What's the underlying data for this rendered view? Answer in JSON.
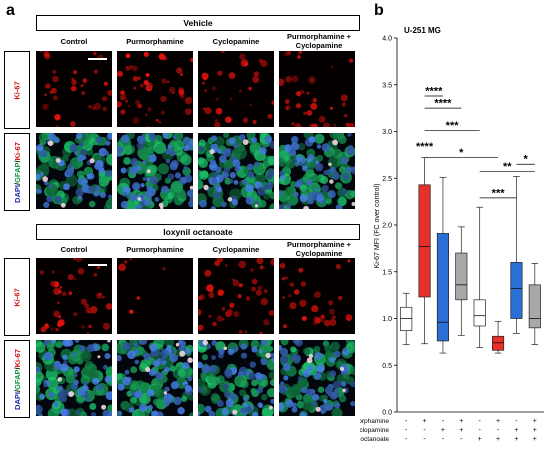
{
  "panel_a": {
    "letter": "a",
    "groups": [
      {
        "title": "Vehicle",
        "columns": [
          "Control",
          "Purmorphamine",
          "Cyclopamine",
          "Purmorphamine + Cyclopamine"
        ]
      },
      {
        "title": "Ioxynil octanoate",
        "columns": [
          "Control",
          "Purmorphamine",
          "Cyclopamine",
          "Purmorphamine + Cyclopamine"
        ]
      }
    ],
    "row_labels": {
      "ki67": "Ki-67",
      "merge_parts": [
        {
          "text": "DAPI",
          "color": "#1a2fb0"
        },
        {
          "text": "/",
          "color": "#000000"
        },
        {
          "text": "GFAP",
          "color": "#0a9a3a"
        },
        {
          "text": "/",
          "color": "#000000"
        },
        {
          "text": "Ki-67",
          "color": "#d01010"
        }
      ]
    }
  },
  "panel_b": {
    "letter": "b"
  },
  "chart_data": {
    "type": "box",
    "title": "U-251 MG",
    "ylabel": "Ki-67 MFI (FC over control)",
    "ylim": [
      0,
      4.0
    ],
    "yticks": [
      0,
      0.5,
      1.0,
      1.5,
      2.0,
      2.5,
      3.0,
      3.5,
      4.0
    ],
    "ytick_labels": [
      "0.0",
      "0.5",
      "1.0",
      "1.5",
      "2.0",
      "2.5",
      "3.0",
      "3.5",
      "4.0"
    ],
    "factor_rows": [
      {
        "label": "Purmorphamine",
        "signs": [
          "-",
          "+",
          "-",
          "+",
          "-",
          "+",
          "-",
          "+"
        ]
      },
      {
        "label": "Cyclopamine",
        "signs": [
          "-",
          "-",
          "+",
          "+",
          "-",
          "-",
          "+",
          "+"
        ]
      },
      {
        "label": "Ioxynil octanoate",
        "signs": [
          "-",
          "-",
          "-",
          "-",
          "+",
          "+",
          "+",
          "+"
        ]
      }
    ],
    "boxes": [
      {
        "min": 0.72,
        "q1": 0.87,
        "median": 1.0,
        "q3": 1.12,
        "max": 1.27,
        "color": "#ffffff"
      },
      {
        "min": 0.73,
        "q1": 1.23,
        "median": 1.77,
        "q3": 2.43,
        "max": 2.72,
        "color": "#e8302a"
      },
      {
        "min": 0.63,
        "q1": 0.76,
        "median": 0.96,
        "q3": 1.91,
        "max": 2.51,
        "color": "#2a6fd6"
      },
      {
        "min": 0.82,
        "q1": 1.2,
        "median": 1.36,
        "q3": 1.7,
        "max": 1.98,
        "color": "#a8a8a8"
      },
      {
        "min": 0.69,
        "q1": 0.92,
        "median": 1.03,
        "q3": 1.2,
        "max": 2.19,
        "color": "#ffffff"
      },
      {
        "min": 0.63,
        "q1": 0.66,
        "median": 0.74,
        "q3": 0.81,
        "max": 0.97,
        "color": "#e8302a"
      },
      {
        "min": 0.84,
        "q1": 1.0,
        "median": 1.32,
        "q3": 1.6,
        "max": 2.52,
        "color": "#2a6fd6"
      },
      {
        "min": 0.72,
        "q1": 0.9,
        "median": 1.0,
        "q3": 1.36,
        "max": 1.59,
        "color": "#a8a8a8"
      }
    ],
    "significance": [
      {
        "from": 1,
        "to": 2,
        "y": 3.38,
        "label": "****"
      },
      {
        "from": 1,
        "to": 3,
        "y": 3.25,
        "label": "****"
      },
      {
        "from": 1,
        "to": 4,
        "y": 3.01,
        "label": "***"
      },
      {
        "from": 1,
        "to": 5,
        "y": 2.72,
        "label": "*"
      },
      {
        "from": 4,
        "to": 7,
        "y": 2.57,
        "label": "**"
      },
      {
        "from": 4,
        "to": 6,
        "y": 2.29,
        "label": "***"
      },
      {
        "from": 6,
        "to": 7,
        "y": 2.65,
        "label": "*"
      }
    ],
    "overall_mark": {
      "box": 1,
      "y": 2.8,
      "label": "****"
    }
  }
}
